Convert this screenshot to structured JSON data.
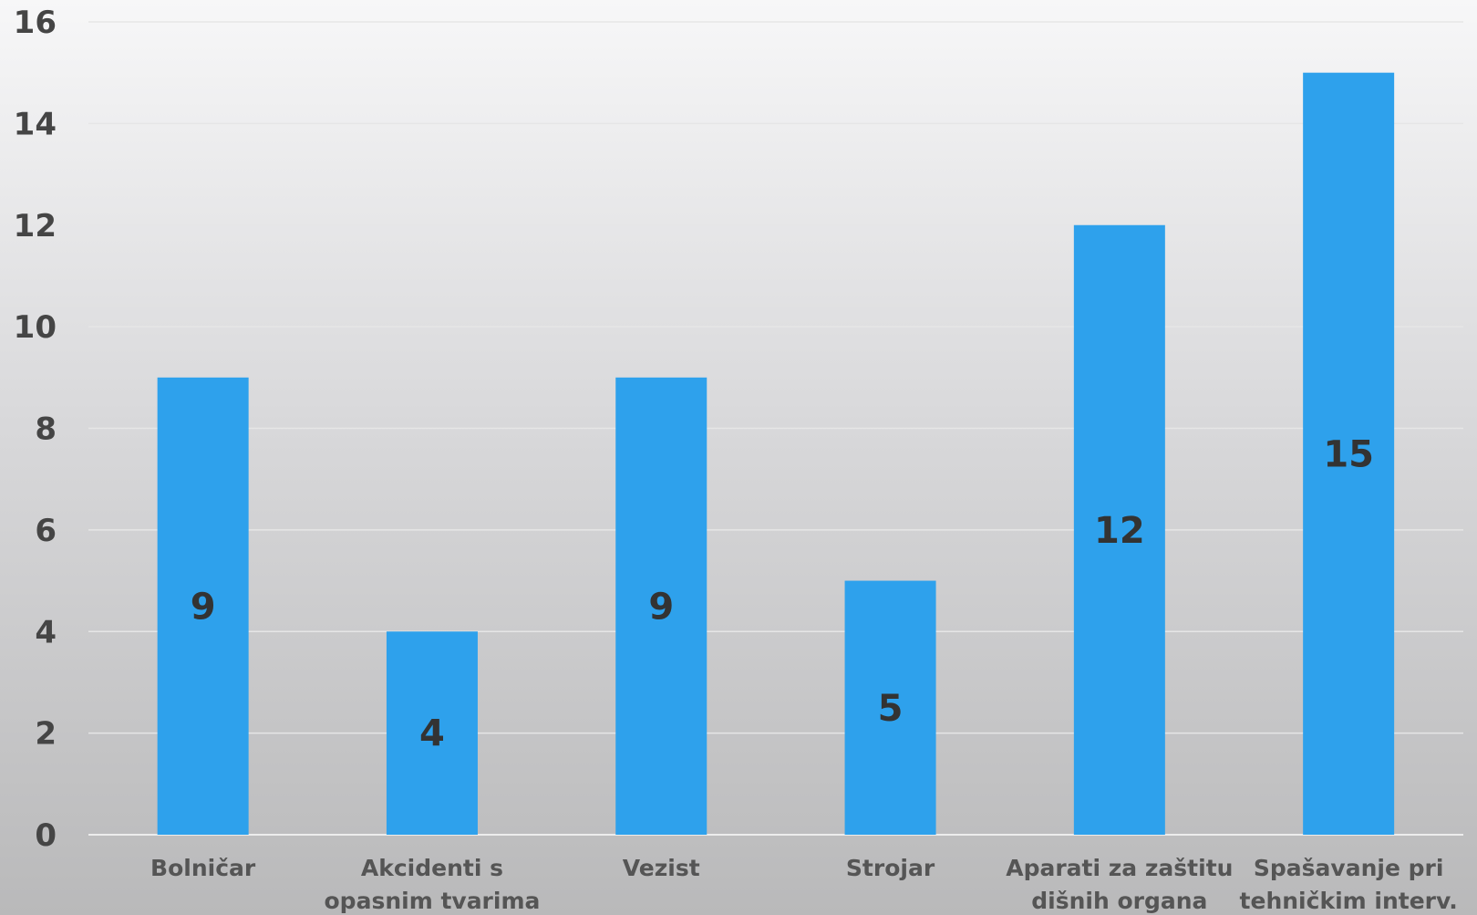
{
  "chart_data": {
    "type": "bar",
    "categories": [
      [
        "Bolničar"
      ],
      [
        "Akcidenti s",
        "opasnim tvarima"
      ],
      [
        "Vezist"
      ],
      [
        "Strojar"
      ],
      [
        "Aparati za zaštitu",
        "dišnih organa"
      ],
      [
        "Spašavanje pri",
        "tehničkim interv."
      ]
    ],
    "values": [
      9,
      4,
      9,
      5,
      12,
      15
    ],
    "data_labels": [
      "9",
      "4",
      "9",
      "5",
      "12",
      "15"
    ],
    "yticks": [
      0,
      2,
      4,
      6,
      8,
      10,
      12,
      14,
      16
    ],
    "ylim": [
      0,
      16
    ],
    "title": "",
    "xlabel": "",
    "ylabel": "",
    "grid": true,
    "legend": "none",
    "colors": {
      "bar": "#2ea1ec",
      "grid": "#e6e6e6",
      "axis": "#ededed",
      "tick_text": "#454545",
      "category_text": "#555555",
      "data_label_text": "#333333"
    }
  }
}
